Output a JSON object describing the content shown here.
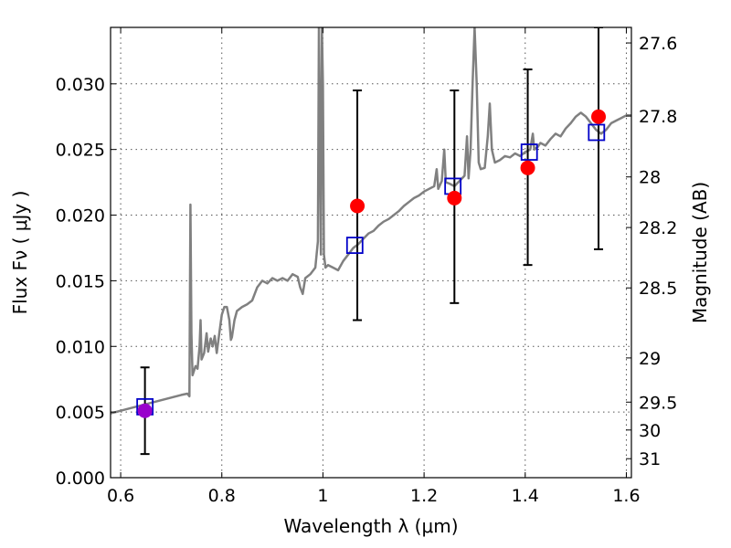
{
  "chart_data": {
    "type": "scatter",
    "title": "",
    "xlabel": "Wavelength  λ (μm)",
    "ylabel": "Flux  Fν  ( μJy )",
    "y2label": "Magnitude (AB)",
    "xlim": [
      0.58,
      1.61
    ],
    "ylim": [
      0.0,
      0.0343
    ],
    "grid": true,
    "legend": "none",
    "x_ticks": [
      {
        "v": 0.6,
        "label": "0.6"
      },
      {
        "v": 0.8,
        "label": "0.8"
      },
      {
        "v": 1.0,
        "label": "1"
      },
      {
        "v": 1.2,
        "label": "1.2"
      },
      {
        "v": 1.4,
        "label": "1.4"
      },
      {
        "v": 1.6,
        "label": "1.6"
      }
    ],
    "y_ticks": [
      {
        "v": 0.0,
        "label": "0.000"
      },
      {
        "v": 0.005,
        "label": "0.005"
      },
      {
        "v": 0.01,
        "label": "0.010"
      },
      {
        "v": 0.015,
        "label": "0.015"
      },
      {
        "v": 0.02,
        "label": "0.020"
      },
      {
        "v": 0.025,
        "label": "0.025"
      },
      {
        "v": 0.03,
        "label": "0.030"
      }
    ],
    "y2_ticks": [
      {
        "mag": 27.6,
        "label": "27.6"
      },
      {
        "mag": 27.8,
        "label": "27.8"
      },
      {
        "mag": 28.0,
        "label": "28"
      },
      {
        "mag": 28.2,
        "label": "28.2"
      },
      {
        "mag": 28.5,
        "label": "28.5"
      },
      {
        "mag": 29.0,
        "label": "29"
      },
      {
        "mag": 29.5,
        "label": "29.5"
      },
      {
        "mag": 30.0,
        "label": "30"
      },
      {
        "mag": 31.0,
        "label": "31"
      }
    ],
    "colors": {
      "spectrum": "#808080",
      "observed": "#ff0000",
      "model": "#0000c8",
      "first_point": "#9900cc",
      "errorbar": "#000000",
      "grid": "#555555"
    },
    "spectrum": {
      "name": "",
      "points": [
        [
          0.58,
          0.0049
        ],
        [
          0.6,
          0.0051
        ],
        [
          0.62,
          0.0053
        ],
        [
          0.64,
          0.0055
        ],
        [
          0.66,
          0.0057
        ],
        [
          0.68,
          0.0059
        ],
        [
          0.7,
          0.0061
        ],
        [
          0.72,
          0.0063
        ],
        [
          0.732,
          0.0064
        ],
        [
          0.736,
          0.0062
        ],
        [
          0.738,
          0.0208
        ],
        [
          0.74,
          0.011
        ],
        [
          0.742,
          0.0078
        ],
        [
          0.748,
          0.0085
        ],
        [
          0.752,
          0.0083
        ],
        [
          0.756,
          0.01
        ],
        [
          0.758,
          0.012
        ],
        [
          0.76,
          0.009
        ],
        [
          0.765,
          0.0095
        ],
        [
          0.77,
          0.011
        ],
        [
          0.773,
          0.0096
        ],
        [
          0.778,
          0.0106
        ],
        [
          0.782,
          0.01
        ],
        [
          0.786,
          0.0108
        ],
        [
          0.79,
          0.0095
        ],
        [
          0.795,
          0.011
        ],
        [
          0.8,
          0.0124
        ],
        [
          0.805,
          0.013
        ],
        [
          0.81,
          0.013
        ],
        [
          0.815,
          0.012
        ],
        [
          0.818,
          0.0105
        ],
        [
          0.82,
          0.0107
        ],
        [
          0.825,
          0.012
        ],
        [
          0.83,
          0.0127
        ],
        [
          0.84,
          0.013
        ],
        [
          0.85,
          0.0132
        ],
        [
          0.86,
          0.0135
        ],
        [
          0.87,
          0.0145
        ],
        [
          0.88,
          0.015
        ],
        [
          0.89,
          0.0148
        ],
        [
          0.9,
          0.0152
        ],
        [
          0.91,
          0.015
        ],
        [
          0.92,
          0.0152
        ],
        [
          0.93,
          0.015
        ],
        [
          0.94,
          0.0155
        ],
        [
          0.95,
          0.0153
        ],
        [
          0.955,
          0.0145
        ],
        [
          0.96,
          0.014
        ],
        [
          0.965,
          0.0152
        ],
        [
          0.975,
          0.0155
        ],
        [
          0.985,
          0.016
        ],
        [
          0.99,
          0.018
        ],
        [
          0.992,
          0.0343
        ],
        [
          0.994,
          0.026
        ],
        [
          0.996,
          0.017
        ],
        [
          0.998,
          0.0343
        ],
        [
          1.0,
          0.03
        ],
        [
          1.002,
          0.017
        ],
        [
          1.005,
          0.016
        ],
        [
          1.01,
          0.0162
        ],
        [
          1.02,
          0.016
        ],
        [
          1.03,
          0.0158
        ],
        [
          1.04,
          0.0165
        ],
        [
          1.05,
          0.017
        ],
        [
          1.06,
          0.0175
        ],
        [
          1.07,
          0.0178
        ],
        [
          1.08,
          0.0182
        ],
        [
          1.09,
          0.0186
        ],
        [
          1.1,
          0.0188
        ],
        [
          1.11,
          0.0192
        ],
        [
          1.12,
          0.0195
        ],
        [
          1.13,
          0.0197
        ],
        [
          1.14,
          0.02
        ],
        [
          1.15,
          0.0203
        ],
        [
          1.16,
          0.0207
        ],
        [
          1.17,
          0.021
        ],
        [
          1.18,
          0.0213
        ],
        [
          1.19,
          0.0215
        ],
        [
          1.2,
          0.0218
        ],
        [
          1.21,
          0.022
        ],
        [
          1.22,
          0.0222
        ],
        [
          1.225,
          0.0235
        ],
        [
          1.228,
          0.022
        ],
        [
          1.235,
          0.0226
        ],
        [
          1.24,
          0.025
        ],
        [
          1.243,
          0.0225
        ],
        [
          1.25,
          0.0224
        ],
        [
          1.26,
          0.0222
        ],
        [
          1.27,
          0.0226
        ],
        [
          1.28,
          0.023
        ],
        [
          1.285,
          0.026
        ],
        [
          1.288,
          0.0228
        ],
        [
          1.292,
          0.025
        ],
        [
          1.296,
          0.03
        ],
        [
          1.3,
          0.0343
        ],
        [
          1.304,
          0.03
        ],
        [
          1.308,
          0.024
        ],
        [
          1.312,
          0.0235
        ],
        [
          1.32,
          0.0236
        ],
        [
          1.326,
          0.026
        ],
        [
          1.33,
          0.0285
        ],
        [
          1.334,
          0.025
        ],
        [
          1.34,
          0.024
        ],
        [
          1.35,
          0.0242
        ],
        [
          1.36,
          0.0245
        ],
        [
          1.37,
          0.0244
        ],
        [
          1.38,
          0.0247
        ],
        [
          1.39,
          0.0245
        ],
        [
          1.4,
          0.0248
        ],
        [
          1.41,
          0.025
        ],
        [
          1.415,
          0.0262
        ],
        [
          1.418,
          0.025
        ],
        [
          1.425,
          0.0252
        ],
        [
          1.43,
          0.0255
        ],
        [
          1.44,
          0.0253
        ],
        [
          1.45,
          0.0258
        ],
        [
          1.46,
          0.0262
        ],
        [
          1.47,
          0.026
        ],
        [
          1.48,
          0.0266
        ],
        [
          1.49,
          0.027
        ],
        [
          1.5,
          0.0275
        ],
        [
          1.51,
          0.0278
        ],
        [
          1.52,
          0.0275
        ],
        [
          1.53,
          0.027
        ],
        [
          1.54,
          0.0265
        ],
        [
          1.55,
          0.0262
        ],
        [
          1.56,
          0.0265
        ],
        [
          1.57,
          0.027
        ],
        [
          1.58,
          0.0272
        ],
        [
          1.59,
          0.0274
        ],
        [
          1.6,
          0.0276
        ],
        [
          1.61,
          0.0276
        ]
      ]
    },
    "series": [
      {
        "name": "",
        "marker": "circle",
        "points": [
          {
            "x": 0.648,
            "y": 0.0051,
            "yerr_low": 0.0033,
            "yerr_high": 0.0033
          },
          {
            "x": 1.068,
            "y": 0.0207,
            "yerr_low": 0.0087,
            "yerr_high": 0.0088
          },
          {
            "x": 1.26,
            "y": 0.0213,
            "yerr_low": 0.008,
            "yerr_high": 0.0082
          },
          {
            "x": 1.405,
            "y": 0.0236,
            "yerr_low": 0.0074,
            "yerr_high": 0.0075
          },
          {
            "x": 1.545,
            "y": 0.0275,
            "yerr_low": 0.0101,
            "yerr_high": 0.0068
          }
        ]
      },
      {
        "name": "",
        "marker": "square",
        "points": [
          {
            "x": 0.648,
            "y": 0.0054
          },
          {
            "x": 1.063,
            "y": 0.0177
          },
          {
            "x": 1.257,
            "y": 0.0222
          },
          {
            "x": 1.408,
            "y": 0.0248
          },
          {
            "x": 1.541,
            "y": 0.0263
          }
        ]
      }
    ]
  }
}
